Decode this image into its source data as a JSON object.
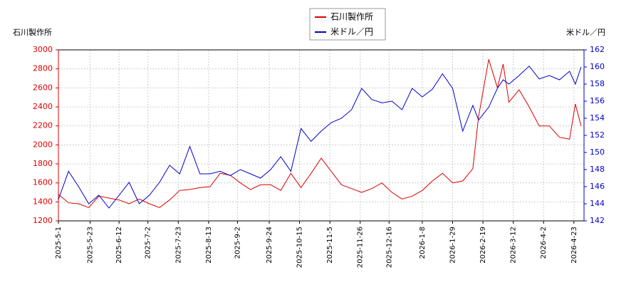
{
  "chart_data": {
    "type": "line",
    "y_label": "石川製作所",
    "y2_label": "米ドル／円",
    "x": [
      "2025-5-1",
      "2025-5-8",
      "2025-5-15",
      "2025-5-22",
      "2025-5-29",
      "2025-6-5",
      "2025-6-12",
      "2025-6-19",
      "2025-6-26",
      "2025-7-3",
      "2025-7-10",
      "2025-7-17",
      "2025-7-24",
      "2025-7-31",
      "2025-8-7",
      "2025-8-14",
      "2025-8-21",
      "2025-8-28",
      "2025-9-4",
      "2025-9-11",
      "2025-9-18",
      "2025-9-25",
      "2025-10-2",
      "2025-10-9",
      "2025-10-16",
      "2025-10-23",
      "2025-10-30",
      "2025-11-6",
      "2025-11-13",
      "2025-11-20",
      "2025-11-27",
      "2025-12-4",
      "2025-12-11",
      "2025-12-18",
      "2025-12-25",
      "2026-1-1",
      "2026-1-8",
      "2026-1-15",
      "2026-1-22",
      "2026-1-29",
      "2026-2-5",
      "2026-2-12",
      "2026-2-16",
      "2026-2-23",
      "2026-3-1",
      "2026-3-5",
      "2026-3-9",
      "2026-3-16",
      "2026-3-23",
      "2026-3-30",
      "2026-4-6",
      "2026-4-13",
      "2026-4-20",
      "2026-4-24",
      "2026-4-28"
    ],
    "series": [
      {
        "name": "石川製作所",
        "color": "#dd0000",
        "values": [
          1480,
          1390,
          1380,
          1340,
          1460,
          1440,
          1420,
          1380,
          1430,
          1380,
          1340,
          1420,
          1520,
          1530,
          1550,
          1560,
          1700,
          1680,
          1600,
          1530,
          1580,
          1580,
          1520,
          1700,
          1550,
          1700,
          1860,
          1720,
          1580,
          1540,
          1500,
          1540,
          1600,
          1500,
          1430,
          1460,
          1520,
          1620,
          1700,
          1600,
          1620,
          1750,
          2300,
          2900,
          2600,
          2850,
          2450,
          2580,
          2400,
          2200,
          2200,
          2080,
          2060,
          2430,
          2200
        ]
      },
      {
        "name": "米ドル／円",
        "color": "#0000cc",
        "axis": "y2",
        "values": [
          144.5,
          147.8,
          146,
          144,
          145,
          143.5,
          145,
          146.5,
          144,
          145,
          146.5,
          148.5,
          147.5,
          150.7,
          147.5,
          147.5,
          147.8,
          147.3,
          148,
          147.5,
          147,
          148,
          149.5,
          147.8,
          152.8,
          151.3,
          152.5,
          153.5,
          154,
          155,
          157.5,
          156.2,
          155.8,
          156,
          155,
          157.5,
          156.5,
          157.4,
          159.2,
          157.5,
          152.5,
          155.5,
          153.8,
          155.3,
          157.5,
          158.5,
          158,
          159,
          160.1,
          158.6,
          159,
          158.5,
          159.5,
          158,
          160
        ]
      }
    ],
    "xlim": [
      "2025-5-1",
      "2026-4-30"
    ],
    "xticks": [
      "2025-5-1",
      "2025-5-23",
      "2025-6-12",
      "2025-7-2",
      "2025-7-23",
      "2025-8-13",
      "2025-9-2",
      "2025-9-24",
      "2025-10-15",
      "2025-11-5",
      "2025-11-26",
      "2025-12-16",
      "2026-1-8",
      "2026-1-29",
      "2026-2-19",
      "2026-3-12",
      "2026-4-2",
      "2026-4-23"
    ],
    "ylim": [
      1200,
      3000
    ],
    "yticks": [
      1200,
      1400,
      1600,
      1800,
      2000,
      2200,
      2400,
      2600,
      2800,
      3000
    ],
    "y2lim": [
      142,
      162
    ],
    "y2ticks": [
      142,
      144,
      146,
      148,
      150,
      152,
      154,
      156,
      158,
      160,
      162
    ],
    "grid": true,
    "legend": "top"
  }
}
